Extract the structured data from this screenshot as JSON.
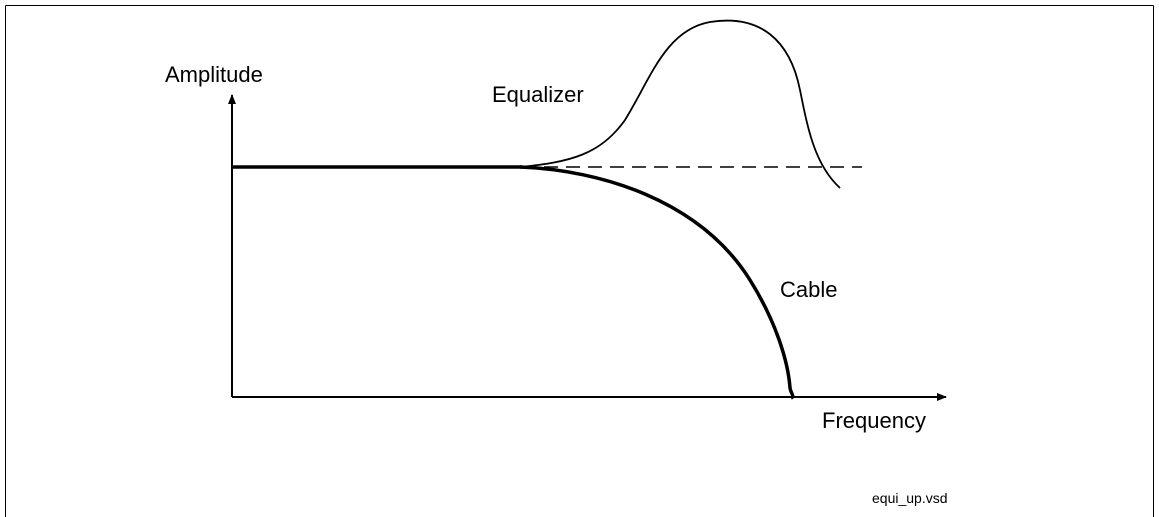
{
  "labels": {
    "y_axis": "Amplitude",
    "x_axis": "Frequency",
    "equalizer": "Equalizer",
    "cable": "Cable",
    "filename": "equi_up.vsd"
  }
}
